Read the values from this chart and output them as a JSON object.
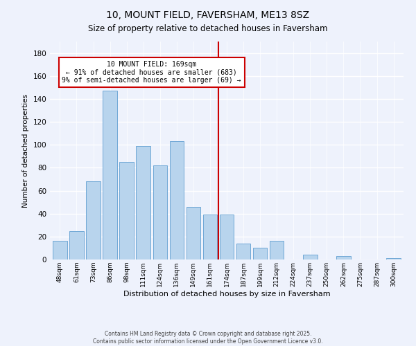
{
  "title": "10, MOUNT FIELD, FAVERSHAM, ME13 8SZ",
  "subtitle": "Size of property relative to detached houses in Faversham",
  "xlabel": "Distribution of detached houses by size in Faversham",
  "ylabel": "Number of detached properties",
  "bar_labels": [
    "48sqm",
    "61sqm",
    "73sqm",
    "86sqm",
    "98sqm",
    "111sqm",
    "124sqm",
    "136sqm",
    "149sqm",
    "161sqm",
    "174sqm",
    "187sqm",
    "199sqm",
    "212sqm",
    "224sqm",
    "237sqm",
    "250sqm",
    "262sqm",
    "275sqm",
    "287sqm",
    "300sqm"
  ],
  "bar_values": [
    16,
    25,
    68,
    147,
    85,
    99,
    82,
    103,
    46,
    39,
    39,
    14,
    10,
    16,
    0,
    4,
    0,
    3,
    0,
    0,
    1
  ],
  "bar_color": "#b8d4ed",
  "bar_edge_color": "#6fa8d6",
  "vline_x_index": 10,
  "vline_color": "#cc0000",
  "annotation_text": "10 MOUNT FIELD: 169sqm\n← 91% of detached houses are smaller (683)\n9% of semi-detached houses are larger (69) →",
  "annotation_box_color": "#ffffff",
  "annotation_box_edge": "#cc0000",
  "ylim": [
    0,
    190
  ],
  "yticks": [
    0,
    20,
    40,
    60,
    80,
    100,
    120,
    140,
    160,
    180
  ],
  "footer_line1": "Contains HM Land Registry data © Crown copyright and database right 2025.",
  "footer_line2": "Contains public sector information licensed under the Open Government Licence v3.0.",
  "bg_color": "#eef2fc",
  "grid_color": "#d0d8e8",
  "title_fontsize": 10,
  "subtitle_fontsize": 9
}
